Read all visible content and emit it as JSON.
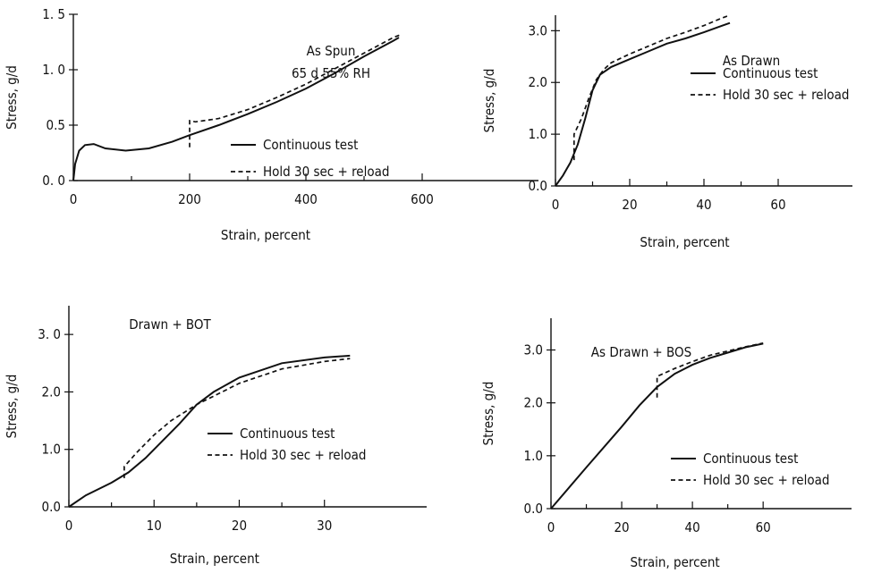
{
  "chart_data": [
    {
      "type": "line",
      "annotations": [
        "As Spun",
        "65 d  55% RH"
      ],
      "xlabel": "Strain, percent",
      "ylabel": "Stress, g/d",
      "xlim": [
        0,
        800
      ],
      "ylim": [
        0,
        1.5
      ],
      "x_ticks": [
        0,
        200,
        400,
        600
      ],
      "x_tick_labels": [
        "0",
        "200",
        "400",
        "600"
      ],
      "y_ticks": [
        0,
        0.5,
        1.0,
        1.5
      ],
      "y_tick_labels": [
        "0. 0",
        "0.5",
        "1. 0",
        "1. 5"
      ],
      "legend_position": "center-right",
      "series": [
        {
          "name": "Continuous test",
          "style": "solid",
          "points": [
            [
              0,
              0
            ],
            [
              3,
              0.15
            ],
            [
              10,
              0.27
            ],
            [
              20,
              0.32
            ],
            [
              35,
              0.33
            ],
            [
              55,
              0.29
            ],
            [
              90,
              0.27
            ],
            [
              130,
              0.29
            ],
            [
              170,
              0.35
            ],
            [
              200,
              0.41
            ],
            [
              250,
              0.5
            ],
            [
              300,
              0.6
            ],
            [
              350,
              0.71
            ],
            [
              400,
              0.83
            ],
            [
              450,
              0.97
            ],
            [
              500,
              1.12
            ],
            [
              550,
              1.26
            ],
            [
              560,
              1.29
            ]
          ]
        },
        {
          "name": "Hold 30 sec + reload",
          "style": "dashed",
          "points": [
            [
              200,
              0.3
            ],
            [
              200,
              0.54
            ],
            [
              210,
              0.53
            ],
            [
              250,
              0.56
            ],
            [
              300,
              0.64
            ],
            [
              350,
              0.75
            ],
            [
              400,
              0.87
            ],
            [
              450,
              1.01
            ],
            [
              500,
              1.15
            ],
            [
              550,
              1.29
            ],
            [
              565,
              1.32
            ]
          ]
        }
      ]
    },
    {
      "type": "line",
      "annotations": [
        "As Drawn"
      ],
      "xlabel": "Strain,  percent",
      "ylabel": "Stress, g/d",
      "xlim": [
        0,
        80
      ],
      "ylim": [
        0,
        3.3
      ],
      "x_ticks": [
        0,
        20,
        40,
        60
      ],
      "x_tick_labels": [
        "0",
        "20",
        "40",
        "60"
      ],
      "y_ticks": [
        0,
        1.0,
        2.0,
        3.0
      ],
      "y_tick_labels": [
        "0.0",
        "1.0",
        "2.0",
        "3.0"
      ],
      "legend_position": "center-right",
      "series": [
        {
          "name": "Continuous test",
          "style": "solid",
          "points": [
            [
              0,
              0
            ],
            [
              2,
              0.2
            ],
            [
              4,
              0.45
            ],
            [
              6,
              0.8
            ],
            [
              8,
              1.3
            ],
            [
              10,
              1.85
            ],
            [
              12,
              2.15
            ],
            [
              15,
              2.3
            ],
            [
              20,
              2.45
            ],
            [
              25,
              2.6
            ],
            [
              30,
              2.75
            ],
            [
              35,
              2.85
            ],
            [
              40,
              2.97
            ],
            [
              45,
              3.1
            ],
            [
              47,
              3.15
            ]
          ]
        },
        {
          "name": "Hold 30 sec + reload",
          "style": "dashed",
          "points": [
            [
              5,
              0.5
            ],
            [
              5,
              1.0
            ],
            [
              7,
              1.3
            ],
            [
              9,
              1.7
            ],
            [
              11,
              2.05
            ],
            [
              13,
              2.25
            ],
            [
              15,
              2.38
            ],
            [
              20,
              2.55
            ],
            [
              25,
              2.7
            ],
            [
              30,
              2.85
            ],
            [
              35,
              2.97
            ],
            [
              40,
              3.1
            ],
            [
              45,
              3.25
            ],
            [
              47,
              3.3
            ]
          ]
        }
      ]
    },
    {
      "type": "line",
      "annotations": [
        "Drawn   + BOT"
      ],
      "xlabel": "Strain, percent",
      "ylabel": "Stress, g/d",
      "xlim": [
        0,
        42
      ],
      "ylim": [
        0,
        3.5
      ],
      "x_ticks": [
        0,
        10,
        20,
        30
      ],
      "x_tick_labels": [
        "0",
        "10",
        "20",
        "30"
      ],
      "y_ticks": [
        0,
        1.0,
        2.0,
        3.0
      ],
      "y_tick_labels": [
        "0.0",
        "1.0",
        "2.0",
        "3. 0"
      ],
      "legend_position": "center-right",
      "series": [
        {
          "name": "Continuous test",
          "style": "solid",
          "points": [
            [
              0,
              0
            ],
            [
              2,
              0.2
            ],
            [
              5,
              0.42
            ],
            [
              7,
              0.6
            ],
            [
              9,
              0.85
            ],
            [
              11,
              1.15
            ],
            [
              13,
              1.45
            ],
            [
              15,
              1.78
            ],
            [
              17,
              2.0
            ],
            [
              20,
              2.25
            ],
            [
              25,
              2.5
            ],
            [
              30,
              2.6
            ],
            [
              33,
              2.63
            ]
          ]
        },
        {
          "name": "Hold 30 sec + reload",
          "style": "dashed",
          "points": [
            [
              6.5,
              0.5
            ],
            [
              6.5,
              0.7
            ],
            [
              8,
              0.95
            ],
            [
              10,
              1.25
            ],
            [
              12,
              1.5
            ],
            [
              15,
              1.78
            ],
            [
              18,
              2.0
            ],
            [
              20,
              2.15
            ],
            [
              25,
              2.4
            ],
            [
              30,
              2.53
            ],
            [
              33,
              2.58
            ]
          ]
        }
      ]
    },
    {
      "type": "line",
      "annotations": [
        "As Drawn  +  BOS"
      ],
      "xlabel": "Strain, percent",
      "ylabel": "Stress, g/d",
      "xlim": [
        0,
        85
      ],
      "ylim": [
        0,
        3.6
      ],
      "x_ticks": [
        0,
        20,
        40,
        60
      ],
      "x_tick_labels": [
        "0",
        "20",
        "40",
        "60"
      ],
      "y_ticks": [
        0,
        1.0,
        2.0,
        3.0
      ],
      "y_tick_labels": [
        "0.0",
        "1.0",
        "2.0",
        "3.0"
      ],
      "legend_position": "bottom-right",
      "series": [
        {
          "name": "Continuous test",
          "style": "solid",
          "points": [
            [
              0,
              0
            ],
            [
              10,
              0.78
            ],
            [
              20,
              1.55
            ],
            [
              25,
              1.95
            ],
            [
              30,
              2.3
            ],
            [
              35,
              2.55
            ],
            [
              40,
              2.72
            ],
            [
              45,
              2.85
            ],
            [
              50,
              2.95
            ],
            [
              55,
              3.05
            ],
            [
              60,
              3.12
            ]
          ]
        },
        {
          "name": "Hold 30 sec + reload",
          "style": "dashed",
          "points": [
            [
              30,
              2.1
            ],
            [
              30,
              2.5
            ],
            [
              35,
              2.65
            ],
            [
              40,
              2.78
            ],
            [
              45,
              2.9
            ],
            [
              50,
              2.98
            ],
            [
              55,
              3.06
            ],
            [
              60,
              3.13
            ]
          ]
        }
      ]
    }
  ]
}
